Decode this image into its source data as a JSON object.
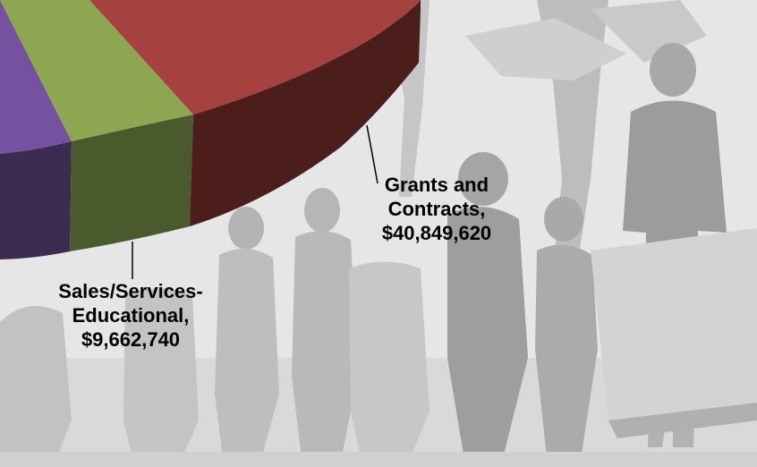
{
  "chart_data": {
    "type": "pie",
    "title": "",
    "series": [
      {
        "name": "Grants and Contracts",
        "value": 40849620,
        "label_lines": [
          "Grants and",
          "Contracts,",
          "$40,849,620"
        ]
      },
      {
        "name": "Sales/Services-Educational",
        "value": 9662740,
        "label_lines": [
          "Sales/Services-",
          "Educational,",
          "$9,662,740"
        ]
      }
    ],
    "colors": {
      "grants_top": "#a5413f",
      "grants_side": "#4b1d1b",
      "sales_top": "#8da651",
      "sales_side": "#4b5a2c",
      "purple_top": "#7452a0",
      "purple_side": "#3c2c50"
    },
    "style": "3d-exploded-cropped",
    "background": "grayscale photo of students walking outdoors"
  }
}
